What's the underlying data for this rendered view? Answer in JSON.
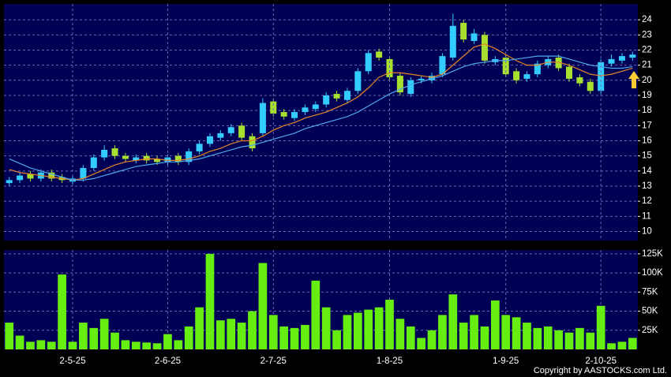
{
  "chart_data": [
    {
      "type": "candlestick",
      "open": [
        13.2,
        13.4,
        13.8,
        13.5,
        13.9,
        13.6,
        13.3,
        13.5,
        14.2,
        14.9,
        15.5,
        15.0,
        14.7,
        15.0,
        14.8,
        14.6,
        15.0,
        14.6,
        15.3,
        15.8,
        16.2,
        16.5,
        17.0,
        16.3,
        16.5,
        18.6,
        17.9,
        17.5,
        17.9,
        18.1,
        18.4,
        19.1,
        18.7,
        19.3,
        20.6,
        21.9,
        21.4,
        20.3,
        19.1,
        20.0,
        20.0,
        20.4,
        21.5,
        23.8,
        22.6,
        23.0,
        21.2,
        21.5,
        20.6,
        20.1,
        20.4,
        21.0,
        21.5,
        20.9,
        20.2,
        19.9,
        19.3,
        21.1,
        21.3,
        21.5
      ],
      "high": [
        13.6,
        13.9,
        14.0,
        14.1,
        14.1,
        13.8,
        13.7,
        14.4,
        15.1,
        15.7,
        15.7,
        15.2,
        15.1,
        15.2,
        15.0,
        15.1,
        15.2,
        15.5,
        16.0,
        16.5,
        16.7,
        17.1,
        17.2,
        16.5,
        18.8,
        18.8,
        18.1,
        18.1,
        18.4,
        18.6,
        19.2,
        19.3,
        19.5,
        20.8,
        22.0,
        22.1,
        21.6,
        20.5,
        20.2,
        20.3,
        20.5,
        21.8,
        24.4,
        24.0,
        23.4,
        23.2,
        21.6,
        21.7,
        20.8,
        20.6,
        21.3,
        21.6,
        21.7,
        21.1,
        20.4,
        20.1,
        21.4,
        21.7,
        21.8,
        21.9
      ],
      "low": [
        13.0,
        13.2,
        13.3,
        13.3,
        13.3,
        13.2,
        13.1,
        13.3,
        14.0,
        14.7,
        14.8,
        14.6,
        14.5,
        14.5,
        14.4,
        14.4,
        14.4,
        14.4,
        15.1,
        15.6,
        16.0,
        16.3,
        16.0,
        15.3,
        16.3,
        17.6,
        17.4,
        17.3,
        17.7,
        17.9,
        18.2,
        18.6,
        18.5,
        19.1,
        20.4,
        21.3,
        20.0,
        19.0,
        18.9,
        19.8,
        19.8,
        20.2,
        21.3,
        22.5,
        22.4,
        21.1,
        21.0,
        20.2,
        19.8,
        19.9,
        20.2,
        20.8,
        20.6,
        19.9,
        19.6,
        19.1,
        19.1,
        20.9,
        21.1,
        21.3
      ],
      "close": [
        13.4,
        13.7,
        13.5,
        13.9,
        13.5,
        13.4,
        13.5,
        14.2,
        14.9,
        15.4,
        15.0,
        14.8,
        14.9,
        14.7,
        14.6,
        14.9,
        14.6,
        15.3,
        15.8,
        16.3,
        16.5,
        16.9,
        16.2,
        15.5,
        18.5,
        17.8,
        17.6,
        17.9,
        18.2,
        18.4,
        19.0,
        18.8,
        19.3,
        20.6,
        21.8,
        21.5,
        20.2,
        19.2,
        20.0,
        20.1,
        20.3,
        21.6,
        23.6,
        22.7,
        23.1,
        21.3,
        21.4,
        20.4,
        20.0,
        20.4,
        21.1,
        21.4,
        20.8,
        20.1,
        19.8,
        19.3,
        21.2,
        21.4,
        21.6,
        21.7
      ],
      "up_color": "#33ccff",
      "down_color": "#a8e030",
      "series": [
        {
          "color": "#e8862a",
          "values": [
            14.1,
            13.9,
            13.8,
            13.7,
            13.6,
            13.5,
            13.4,
            13.5,
            13.8,
            14.1,
            14.4,
            14.6,
            14.7,
            14.8,
            14.8,
            14.7,
            14.7,
            14.8,
            15.0,
            15.3,
            15.5,
            15.8,
            16.0,
            16.0,
            16.3,
            16.7,
            17.0,
            17.2,
            17.5,
            17.7,
            17.9,
            18.2,
            18.5,
            18.9,
            19.5,
            20.2,
            20.5,
            20.5,
            20.4,
            20.3,
            20.2,
            20.4,
            21.0,
            21.6,
            22.2,
            22.4,
            22.1,
            21.7,
            21.3,
            21.0,
            21.0,
            21.2,
            21.2,
            21.0,
            20.7,
            20.4,
            20.3,
            20.4,
            20.6,
            20.8
          ]
        },
        {
          "color": "#4ea8ec",
          "values": [
            14.8,
            14.5,
            14.2,
            14.0,
            13.8,
            13.6,
            13.4,
            13.4,
            13.5,
            13.7,
            13.9,
            14.1,
            14.3,
            14.4,
            14.5,
            14.6,
            14.6,
            14.7,
            14.8,
            15.0,
            15.2,
            15.4,
            15.6,
            15.7,
            15.9,
            16.1,
            16.3,
            16.5,
            16.8,
            17.0,
            17.2,
            17.4,
            17.6,
            17.9,
            18.3,
            18.7,
            19.1,
            19.4,
            19.7,
            19.9,
            20.1,
            20.3,
            20.6,
            20.9,
            21.1,
            21.2,
            21.3,
            21.3,
            21.4,
            21.5,
            21.6,
            21.6,
            21.6,
            21.4,
            21.2,
            21.0,
            20.9,
            20.8,
            20.8,
            20.9
          ]
        }
      ],
      "ylim": [
        9.4,
        25.05
      ],
      "yticks": [
        10,
        11,
        12,
        13,
        14,
        15,
        16,
        17,
        18,
        19,
        20,
        21,
        22,
        23,
        24
      ],
      "grid": true
    },
    {
      "type": "bar",
      "categories": [
        null,
        null,
        null,
        null,
        null,
        null,
        "2-5-25",
        null,
        null,
        null,
        null,
        null,
        null,
        null,
        null,
        "2-6-25",
        null,
        null,
        null,
        null,
        null,
        null,
        null,
        null,
        null,
        "2-7-25",
        null,
        null,
        null,
        null,
        null,
        null,
        null,
        null,
        null,
        null,
        "1-8-25",
        null,
        null,
        null,
        null,
        null,
        null,
        null,
        null,
        null,
        null,
        "1-9-25",
        null,
        null,
        null,
        null,
        null,
        null,
        null,
        null,
        "2-10-25",
        null,
        null,
        null
      ],
      "values": [
        35000,
        18000,
        10000,
        12000,
        10000,
        98000,
        10000,
        35000,
        28000,
        40000,
        22000,
        12000,
        10000,
        9000,
        8000,
        20000,
        12000,
        30000,
        55000,
        125000,
        38000,
        40000,
        35000,
        50000,
        113000,
        45000,
        30000,
        28000,
        32000,
        90000,
        55000,
        25000,
        45000,
        48000,
        52000,
        55000,
        65000,
        40000,
        30000,
        15000,
        25000,
        45000,
        72000,
        35000,
        45000,
        30000,
        64000,
        45000,
        42000,
        35000,
        28000,
        30000,
        25000,
        22000,
        28000,
        22000,
        57000,
        8000,
        10000,
        15000
      ],
      "color": "#66ee11",
      "ylim": [
        0,
        130000
      ],
      "yticks": [
        {
          "value": 25000,
          "label": "25K"
        },
        {
          "value": 50000,
          "label": "50K"
        },
        {
          "value": 75000,
          "label": "75K"
        },
        {
          "value": 100000,
          "label": "100K"
        },
        {
          "value": 125000,
          "label": "125K"
        }
      ],
      "grid": true,
      "footer": "Copyright by AASTOCKS.com Ltd."
    }
  ]
}
